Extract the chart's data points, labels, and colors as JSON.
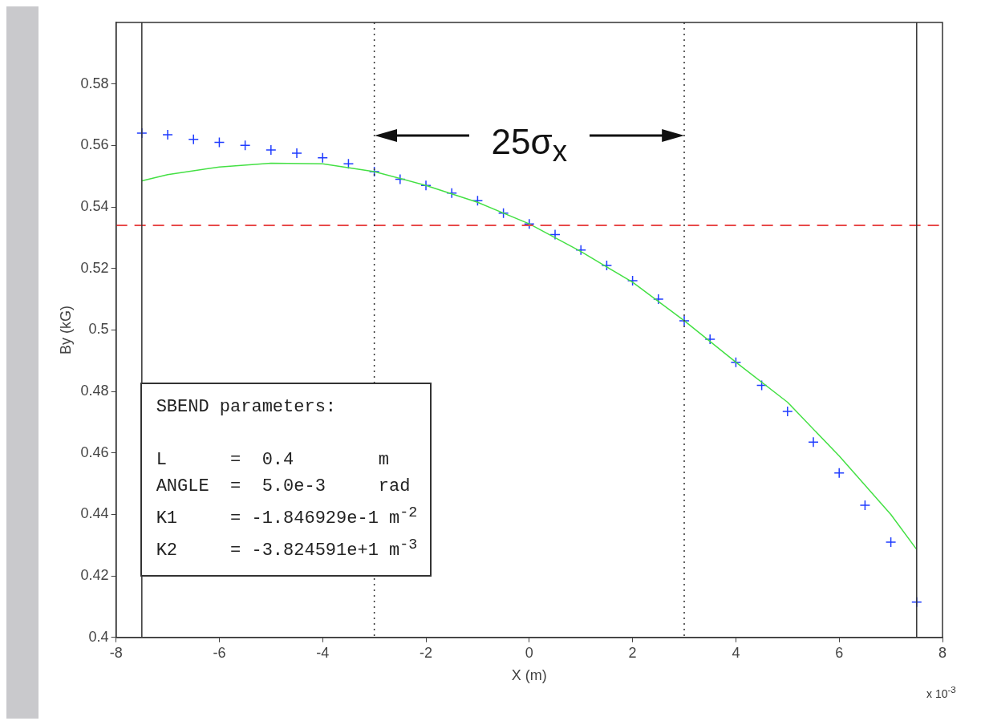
{
  "chart_data": {
    "type": "scatter",
    "xlabel": "X (m)",
    "ylabel": "By (kG)",
    "xlim": [
      -8,
      8
    ],
    "xticks": [
      -8,
      -6,
      -4,
      -2,
      0,
      2,
      4,
      6,
      8
    ],
    "ylim": [
      0.4,
      0.6
    ],
    "yticks": [
      0.4,
      0.42,
      0.44,
      0.46,
      0.48,
      0.5,
      0.52,
      0.54,
      0.56,
      0.58
    ],
    "grid": false,
    "legend": false,
    "series": [
      {
        "type": "scatter",
        "marker": "cross",
        "color": "#1f3cff",
        "x": [
          -7.5,
          -7,
          -6.5,
          -6,
          -5.5,
          -5,
          -4.5,
          -4,
          -3.5,
          -3,
          -2.5,
          -2,
          -1.5,
          -1,
          -0.5,
          0,
          0.5,
          1,
          1.5,
          2,
          2.5,
          3,
          3.5,
          4,
          4.5,
          5,
          5.5,
          6,
          6.5,
          7,
          7.5
        ],
        "values": [
          0.564,
          0.5635,
          0.562,
          0.561,
          0.56,
          0.5585,
          0.5575,
          0.556,
          0.554,
          0.5515,
          0.549,
          0.547,
          0.5445,
          0.542,
          0.538,
          0.5345,
          0.531,
          0.526,
          0.521,
          0.516,
          0.51,
          0.503,
          0.497,
          0.4895,
          0.482,
          0.4735,
          0.4635,
          0.4535,
          0.443,
          0.431,
          0.4115
        ]
      },
      {
        "type": "line",
        "marker": "none",
        "color": "#44e044",
        "x": [
          -7.5,
          -7,
          -6,
          -5,
          -4,
          -3,
          -2,
          -1,
          0,
          1,
          2,
          3,
          4,
          5,
          6,
          7,
          7.5
        ],
        "values": [
          0.5485,
          0.5505,
          0.553,
          0.5542,
          0.554,
          0.5515,
          0.547,
          0.5415,
          0.5345,
          0.5255,
          0.5155,
          0.503,
          0.4895,
          0.4765,
          0.459,
          0.44,
          0.4286
        ]
      }
    ],
    "ref_lines": [
      {
        "axis": "y",
        "value": 0.534,
        "color": "#e84a4a",
        "line_style": "dashed"
      },
      {
        "axis": "x",
        "value": -3,
        "color": "#333333",
        "line_style": "dotted"
      },
      {
        "axis": "x",
        "value": 3,
        "color": "#333333",
        "line_style": "dotted"
      },
      {
        "axis": "x",
        "value": -7.5,
        "color": "#333333",
        "line_style": "solid"
      },
      {
        "axis": "x",
        "value": 7.5,
        "color": "#333333",
        "line_style": "solid"
      }
    ],
    "annotations": [
      "25σ$_{x}$",
      "x 10$^{-3}$",
      "SBEND parameters:",
      "L      =  0.4        m",
      "ANGLE  =  5.0e-3     rad",
      "K1     = -1.846929e-1 m$^{-2}$",
      "K2     = -3.824591e+1 m$^{-3}$"
    ]
  }
}
